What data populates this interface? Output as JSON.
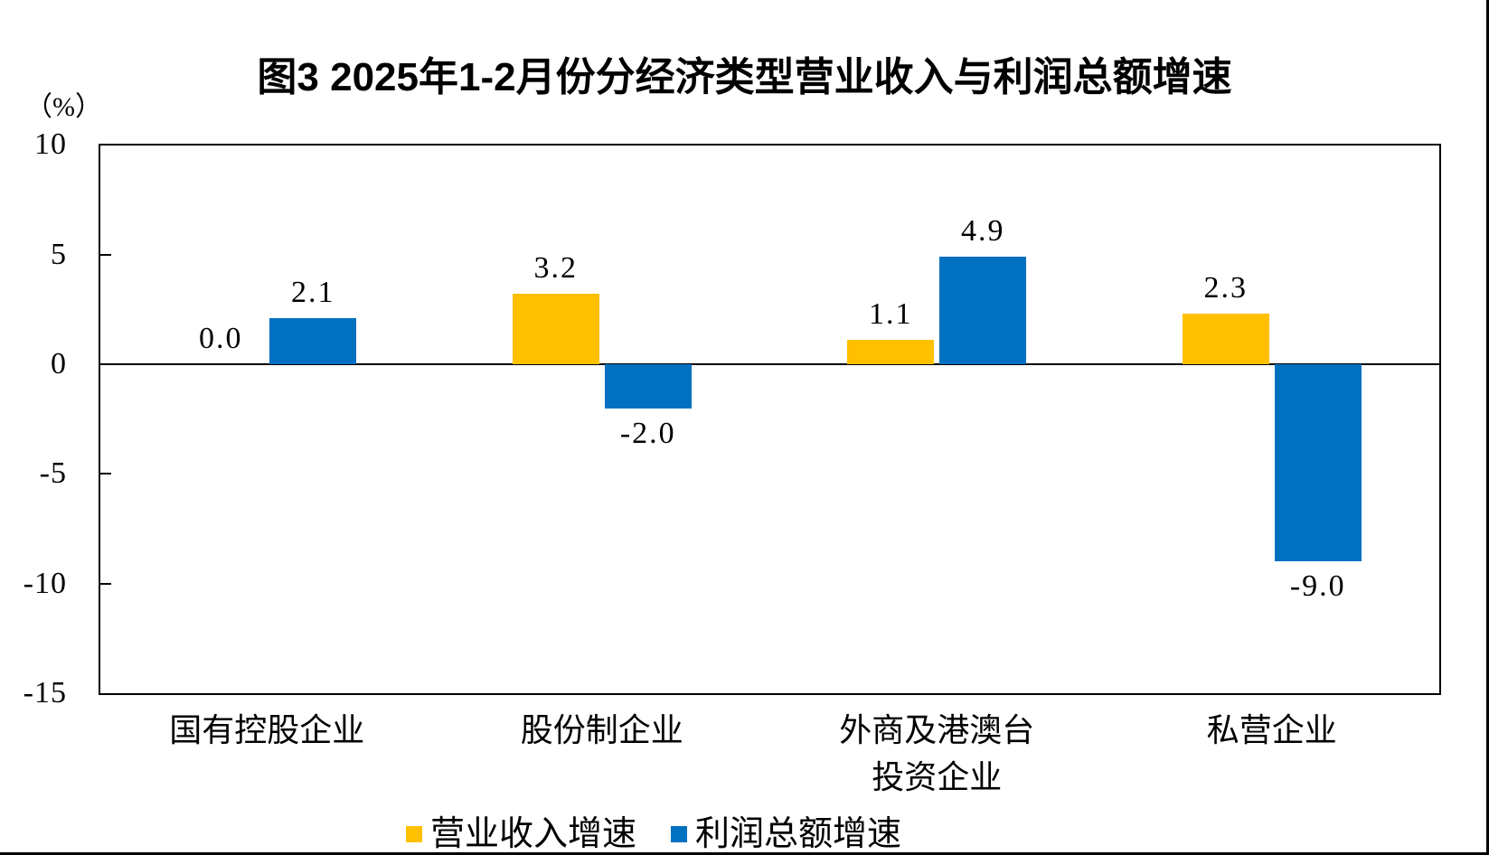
{
  "title": "图3 2025年1-2月份分经济类型营业收入与利润总额增速",
  "axis_unit_label": "（%）",
  "colors": {
    "revenue": "#FFC000",
    "profit": "#0070C0",
    "axis": "#000000",
    "background": "#FFFFFF"
  },
  "chart_data": {
    "type": "bar",
    "title": "图3 2025年1-2月份分经济类型营业收入与利润总额增速",
    "xlabel": "",
    "ylabel": "（%）",
    "ylim": [
      -15,
      10
    ],
    "yticks": [
      10,
      5,
      0,
      -5,
      -10,
      -15
    ],
    "grid": false,
    "legend_position": "bottom",
    "categories": [
      "国有控股企业",
      "股份制企业",
      "外商及港澳台\n投资企业",
      "私营企业"
    ],
    "series": [
      {
        "name": "营业收入增速",
        "color": "#FFC000",
        "values": [
          0.0,
          3.2,
          1.1,
          2.3
        ],
        "labels": [
          "0.0",
          "3.2",
          "1.1",
          "2.3"
        ]
      },
      {
        "name": "利润总额增速",
        "color": "#0070C0",
        "values": [
          2.1,
          -2.0,
          4.9,
          -9.0
        ],
        "labels": [
          "2.1",
          "-2.0",
          "4.9",
          "-9.0"
        ]
      }
    ]
  }
}
